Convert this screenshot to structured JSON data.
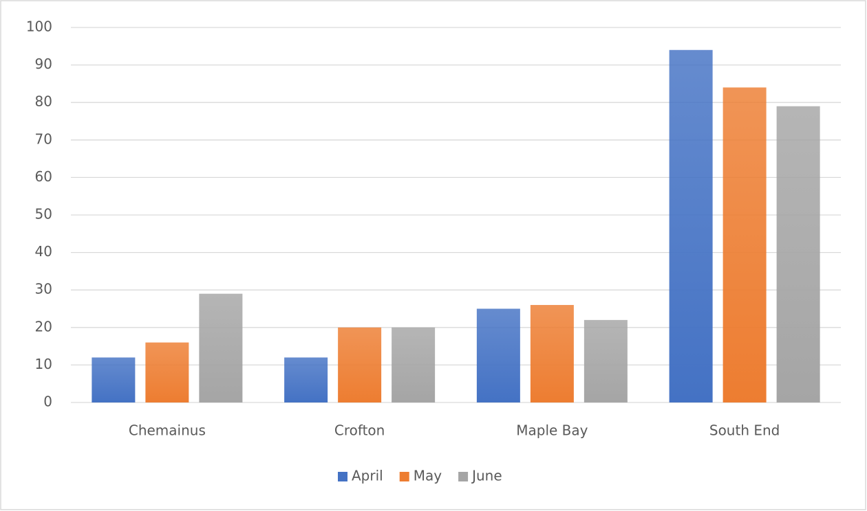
{
  "chart_data": {
    "type": "bar",
    "categories": [
      "Chemainus",
      "Crofton",
      "Maple Bay",
      "South End"
    ],
    "series": [
      {
        "name": "April",
        "color": "#4472c4",
        "values": [
          12,
          12,
          25,
          94
        ]
      },
      {
        "name": "May",
        "color": "#ed7d31",
        "values": [
          16,
          20,
          26,
          84
        ]
      },
      {
        "name": "June",
        "color": "#a5a5a5",
        "values": [
          29,
          20,
          22,
          79
        ]
      }
    ],
    "ylim": [
      0,
      100
    ],
    "yticks": [
      0,
      10,
      20,
      30,
      40,
      50,
      60,
      70,
      80,
      90,
      100
    ],
    "grid": true,
    "legend": "bottom"
  }
}
